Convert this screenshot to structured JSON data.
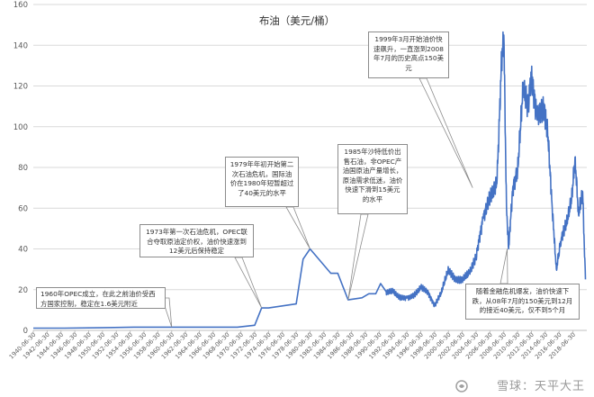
{
  "chart_data": {
    "type": "line",
    "title": "布油（美元/桶）",
    "xlabel": "",
    "ylabel": "",
    "ylim": [
      0,
      160
    ],
    "yticks": [
      0,
      20,
      40,
      60,
      80,
      100,
      120,
      140,
      160
    ],
    "grid": true,
    "legend": "none",
    "series_color": "#4472c4",
    "x_tick_labels": [
      "1940-06-30",
      "1942-06-30",
      "1944-06-30",
      "1946-06-30",
      "1948-06-30",
      "1950-06-30",
      "1952-06-30",
      "1954-06-30",
      "1956-06-30",
      "1958-06-30",
      "1960-06-30",
      "1962-06-30",
      "1964-06-30",
      "1966-06-30",
      "1968-06-30",
      "1970-06-30",
      "1972-06-30",
      "1974-06-30",
      "1976-06-30",
      "1978-06-30",
      "1980-06-30",
      "1982-06-30",
      "1984-06-30",
      "1986-06-30",
      "1988-06-30",
      "1990-06-30",
      "1992-06-30",
      "1994-06-30",
      "1996-06-30",
      "1998-06-30",
      "2000-06-30",
      "2002-06-30",
      "2004-06-30",
      "2006-06-30",
      "2008-06-30",
      "2010-06-30",
      "2012-06-30",
      "2014-06-30",
      "2016-06-30",
      "2018-06-30"
    ],
    "series": [
      {
        "x": [
          1940.5,
          1945,
          1950,
          1955,
          1960,
          1965,
          1970,
          1972.5,
          1973.5,
          1974.5,
          1978.5,
          1979.5,
          1980.5,
          1983.5,
          1984.5,
          1986,
          1988,
          1989,
          1990,
          1990.7,
          1991.5,
          1992.5,
          1993.5,
          1994.5,
          1995.5,
          1996.5,
          1997.5,
          1998.5,
          1999.5,
          2000.5,
          2001.5,
          2002.5,
          2003.5,
          2004.5,
          2005.5,
          2006.5,
          2007.5,
          2008.2,
          2008.5,
          2008.9,
          2009.2,
          2009.8,
          2010.5,
          2011.3,
          2012,
          2012.5,
          2013.3,
          2014.3,
          2014.9,
          2015.5,
          2016.1,
          2016.8,
          2017.5,
          2018.3,
          2018.8,
          2019.3,
          2019.9,
          2020.3
        ],
        "y": [
          1.1,
          1.1,
          1.3,
          1.6,
          1.6,
          1.6,
          1.6,
          2.5,
          11,
          11,
          13,
          35,
          40,
          28,
          28,
          15,
          16,
          18,
          18,
          23,
          19,
          19,
          16,
          16,
          17,
          21,
          19,
          12,
          19,
          30,
          25,
          25,
          28,
          36,
          55,
          65,
          72,
          133,
          145,
          60,
          40,
          70,
          78,
          120,
          110,
          125,
          105,
          110,
          95,
          60,
          30,
          45,
          52,
          64,
          85,
          57,
          68,
          25
        ]
      }
    ],
    "annotations": [
      {
        "text": "1960年OPEC成立，在此之前油价受西方国家控制，稳定在1.6美元附近",
        "x": 1960.5,
        "y": 1.6
      },
      {
        "text": "1973年第一次石油危机，OPEC联合夺取原油定价权，油价快速涨到12美元后保持稳定",
        "x": 1973.5,
        "y": 11
      },
      {
        "text": "1979年年初开始第二次石油危机，国际油价在1980年短暂超过了40美元的水平",
        "x": 1980.5,
        "y": 40
      },
      {
        "text": "1985年沙特低价出售石油，非OPEC产油国原油产量增长，原油需求低迷，油价快速下滑到15美元的水平",
        "x": 1986,
        "y": 15
      },
      {
        "text": "1999年3月开始油价快速飙升，一直涨到2008年7月的历史高点150美元",
        "x": 2004,
        "y": 70
      },
      {
        "text": "随着金融危机爆发，油价快速下跌，从08年7月的150美元到12月的接近40美元，仅不到5个月",
        "x": 2009,
        "y": 40
      }
    ]
  },
  "watermark": {
    "text": "雪球：天平大王"
  }
}
